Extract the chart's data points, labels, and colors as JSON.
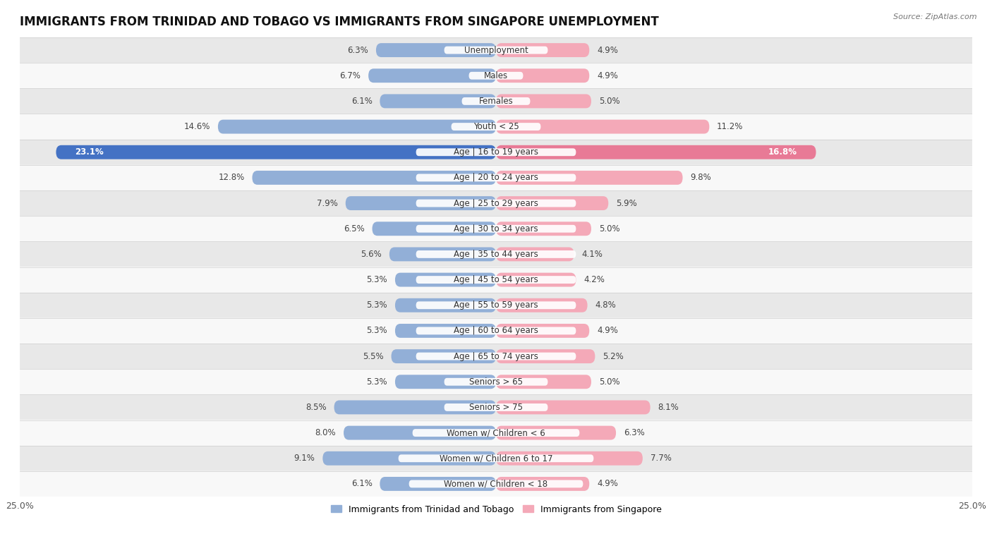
{
  "title": "IMMIGRANTS FROM TRINIDAD AND TOBAGO VS IMMIGRANTS FROM SINGAPORE UNEMPLOYMENT",
  "source": "Source: ZipAtlas.com",
  "categories": [
    "Unemployment",
    "Males",
    "Females",
    "Youth < 25",
    "Age | 16 to 19 years",
    "Age | 20 to 24 years",
    "Age | 25 to 29 years",
    "Age | 30 to 34 years",
    "Age | 35 to 44 years",
    "Age | 45 to 54 years",
    "Age | 55 to 59 years",
    "Age | 60 to 64 years",
    "Age | 65 to 74 years",
    "Seniors > 65",
    "Seniors > 75",
    "Women w/ Children < 6",
    "Women w/ Children 6 to 17",
    "Women w/ Children < 18"
  ],
  "left_values": [
    6.3,
    6.7,
    6.1,
    14.6,
    23.1,
    12.8,
    7.9,
    6.5,
    5.6,
    5.3,
    5.3,
    5.3,
    5.5,
    5.3,
    8.5,
    8.0,
    9.1,
    6.1
  ],
  "right_values": [
    4.9,
    4.9,
    5.0,
    11.2,
    16.8,
    9.8,
    5.9,
    5.0,
    4.1,
    4.2,
    4.8,
    4.9,
    5.2,
    5.0,
    8.1,
    6.3,
    7.7,
    4.9
  ],
  "left_color": "#92afd7",
  "right_color": "#f4a9b8",
  "left_highlight_color": "#4472c4",
  "right_highlight_color": "#e87a96",
  "highlight_index": 4,
  "xlim": 25.0,
  "left_label": "Immigrants from Trinidad and Tobago",
  "right_label": "Immigrants from Singapore",
  "bg_color_odd": "#e8e8e8",
  "bg_color_even": "#f8f8f8",
  "row_edge_color": "#d0d0d0",
  "bar_height": 0.55,
  "title_fontsize": 12,
  "value_fontsize": 8.5,
  "category_fontsize": 8.5
}
